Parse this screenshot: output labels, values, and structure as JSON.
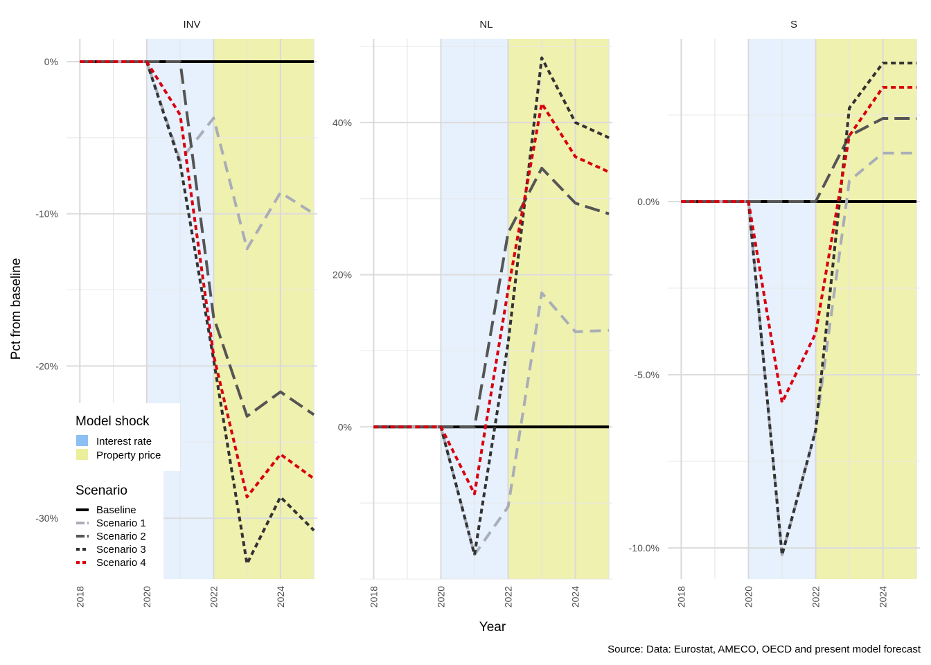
{
  "colors": {
    "interest_rate": "#8cc0f5",
    "property_price": "#e4e87a",
    "baseline": "#000000",
    "scenario1": "#a9adb8",
    "scenario2": "#555555",
    "scenario3": "#333333",
    "scenario4": "#d9000f"
  },
  "chart_data": {
    "type": "line",
    "facet_by": "country",
    "xlabel": "Year",
    "ylabel": "Pct from baseline",
    "caption": "Source: Data: Eurostat, AMECO, OECD and present model forecast",
    "x": [
      2018,
      2019,
      2020,
      2021,
      2022,
      2023,
      2024,
      2025
    ],
    "x_ticks": [
      2018,
      2020,
      2022,
      2024
    ],
    "shock_periods": [
      {
        "name": "Interest rate",
        "start": 2020,
        "end": 2022
      },
      {
        "name": "Property price",
        "start": 2022,
        "end": 2025
      }
    ],
    "legend": {
      "shock_title": "Model shock",
      "shock_items": [
        "Interest rate",
        "Property price"
      ],
      "scenario_title": "Scenario",
      "scenario_items": [
        "Baseline",
        "Scenario 1",
        "Scenario 2",
        "Scenario 3",
        "Scenario 4"
      ],
      "position": "bottom-left inside first panel"
    },
    "panels": [
      {
        "title": "INV",
        "ylim": [
          -34,
          1.5
        ],
        "y_ticks": [
          0,
          -10,
          -20,
          -30
        ],
        "y_tick_labels": [
          "0%",
          "-10%",
          "-20%",
          "-30%"
        ],
        "series": [
          {
            "name": "Baseline",
            "values": [
              0,
              0,
              0,
              0,
              0,
              0,
              0,
              0
            ]
          },
          {
            "name": "Scenario 1",
            "values": [
              0,
              0,
              0,
              -6.5,
              -3.7,
              -12.3,
              -8.6,
              -10.0
            ]
          },
          {
            "name": "Scenario 2",
            "values": [
              0,
              0,
              0,
              0,
              -16.8,
              -23.3,
              -21.7,
              -23.2
            ]
          },
          {
            "name": "Scenario 3",
            "values": [
              0,
              0,
              0,
              -6.7,
              -19.6,
              -33.0,
              -28.6,
              -30.8
            ]
          },
          {
            "name": "Scenario 4",
            "values": [
              0,
              0,
              0,
              -3.5,
              -19.3,
              -28.6,
              -25.8,
              -27.4
            ]
          }
        ]
      },
      {
        "title": "NL",
        "ylim": [
          -20,
          51
        ],
        "y_ticks": [
          0,
          20,
          40
        ],
        "y_tick_labels": [
          "0%",
          "20%",
          "40%"
        ],
        "series": [
          {
            "name": "Baseline",
            "values": [
              0,
              0,
              0,
              0,
              0,
              0,
              0,
              0
            ]
          },
          {
            "name": "Scenario 1",
            "values": [
              0,
              0,
              0,
              -16.8,
              -10.5,
              17.6,
              12.5,
              12.7
            ]
          },
          {
            "name": "Scenario 2",
            "values": [
              0,
              0,
              0,
              0,
              25.5,
              34.0,
              29.4,
              28.0
            ]
          },
          {
            "name": "Scenario 3",
            "values": [
              0,
              0,
              0,
              -16.8,
              11.0,
              48.5,
              40.0,
              38.0
            ]
          },
          {
            "name": "Scenario 4",
            "values": [
              0,
              0,
              0,
              -8.8,
              18.0,
              42.5,
              35.5,
              33.5
            ]
          }
        ]
      },
      {
        "title": "S",
        "ylim": [
          -10.9,
          4.7
        ],
        "y_ticks": [
          0,
          -5,
          -10
        ],
        "y_tick_labels": [
          "0.0%",
          "-5.0%",
          "-10.0%"
        ],
        "series": [
          {
            "name": "Baseline",
            "values": [
              0,
              0,
              0,
              0,
              0,
              0,
              0,
              0
            ]
          },
          {
            "name": "Scenario 1",
            "values": [
              0,
              0,
              0,
              -10.2,
              -6.6,
              0.6,
              1.4,
              1.4
            ]
          },
          {
            "name": "Scenario 2",
            "values": [
              0,
              0,
              0,
              0,
              0,
              1.9,
              2.4,
              2.4
            ]
          },
          {
            "name": "Scenario 3",
            "values": [
              0,
              0,
              0,
              -10.2,
              -6.6,
              2.7,
              4.0,
              4.0
            ]
          },
          {
            "name": "Scenario 4",
            "values": [
              0,
              0,
              0,
              -5.8,
              -3.8,
              1.9,
              3.3,
              3.3
            ]
          }
        ]
      }
    ]
  }
}
